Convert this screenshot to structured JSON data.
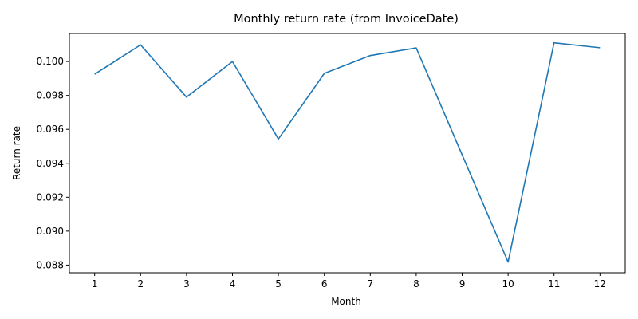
{
  "chart_data": {
    "type": "line",
    "title": "Monthly return rate (from InvoiceDate)",
    "xlabel": "Month",
    "ylabel": "Return rate",
    "x": [
      1,
      2,
      3,
      4,
      5,
      6,
      7,
      8,
      9,
      10,
      11,
      12
    ],
    "x_tick_labels": [
      "1",
      "2",
      "3",
      "4",
      "5",
      "6",
      "7",
      "8",
      "9",
      "10",
      "11",
      "12"
    ],
    "y_ticks": [
      0.088,
      0.09,
      0.092,
      0.094,
      0.096,
      0.098,
      0.1
    ],
    "y_tick_labels": [
      "0.088",
      "0.090",
      "0.092",
      "0.094",
      "0.096",
      "0.098",
      "0.100"
    ],
    "ylim": [
      0.08755,
      0.10165
    ],
    "grid": false,
    "series": [
      {
        "values": [
          0.09925,
          0.10098,
          0.0979,
          0.1,
          0.09543,
          0.0993,
          0.10035,
          0.1008,
          0.0945,
          0.08818,
          0.1011,
          0.10081
        ],
        "color": "#1f77b4"
      }
    ]
  }
}
